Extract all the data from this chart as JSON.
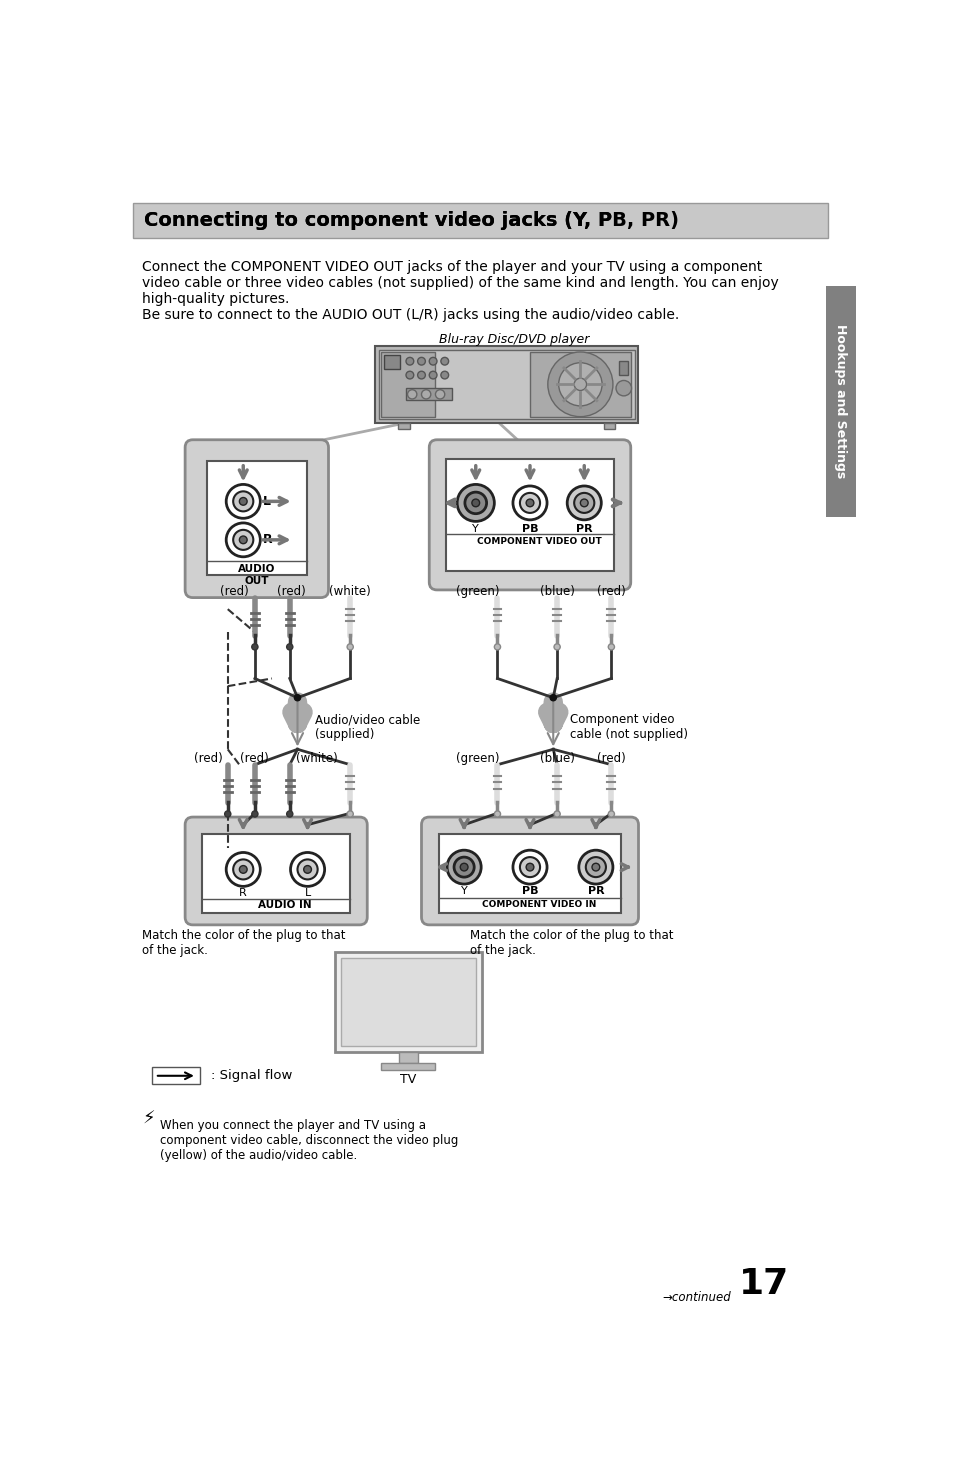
{
  "title": "Connecting to component video jacks (Y, Pʙ, Pʀ)",
  "title_display": "Connecting to component video jacks (Y, PB, PR)",
  "title_bg": "#c8c8c8",
  "sidebar_text": "Hookups and Settings",
  "sidebar_bg": "#808080",
  "bluray_label": "Blu-ray Disc/DVD player",
  "audio_out_label": "AUDIO\nOUT",
  "component_out_label": "COMPONENT VIDEO OUT",
  "component_in_label": "COMPONENT VIDEO IN",
  "audio_in_label": "AUDIO IN",
  "audio_cable_label": "Audio/video cable\n(supplied)",
  "component_cable_label": "Component video\ncable (not supplied)",
  "signal_flow_label": ": Signal flow",
  "note_text": "When you connect the player and TV using a\ncomponent video cable, disconnect the video plug\n(yellow) of the audio/video cable.",
  "tv_label": "TV",
  "match_color_left": "Match the color of the plug to that\nof the jack.",
  "match_color_right": "Match the color of the plug to that\nof the jack.",
  "continued_text": "continued",
  "page_number": "17",
  "body_lines": [
    "Connect the COMPONENT VIDEO OUT jacks of the player and your TV using a component",
    "video cable or three video cables (not supplied) of the same kind and length. You can enjoy",
    "high-quality pictures.",
    "Be sure to connect to the AUDIO OUT (L/R) jacks using the audio/video cable."
  ],
  "bg_color": "#ffffff"
}
